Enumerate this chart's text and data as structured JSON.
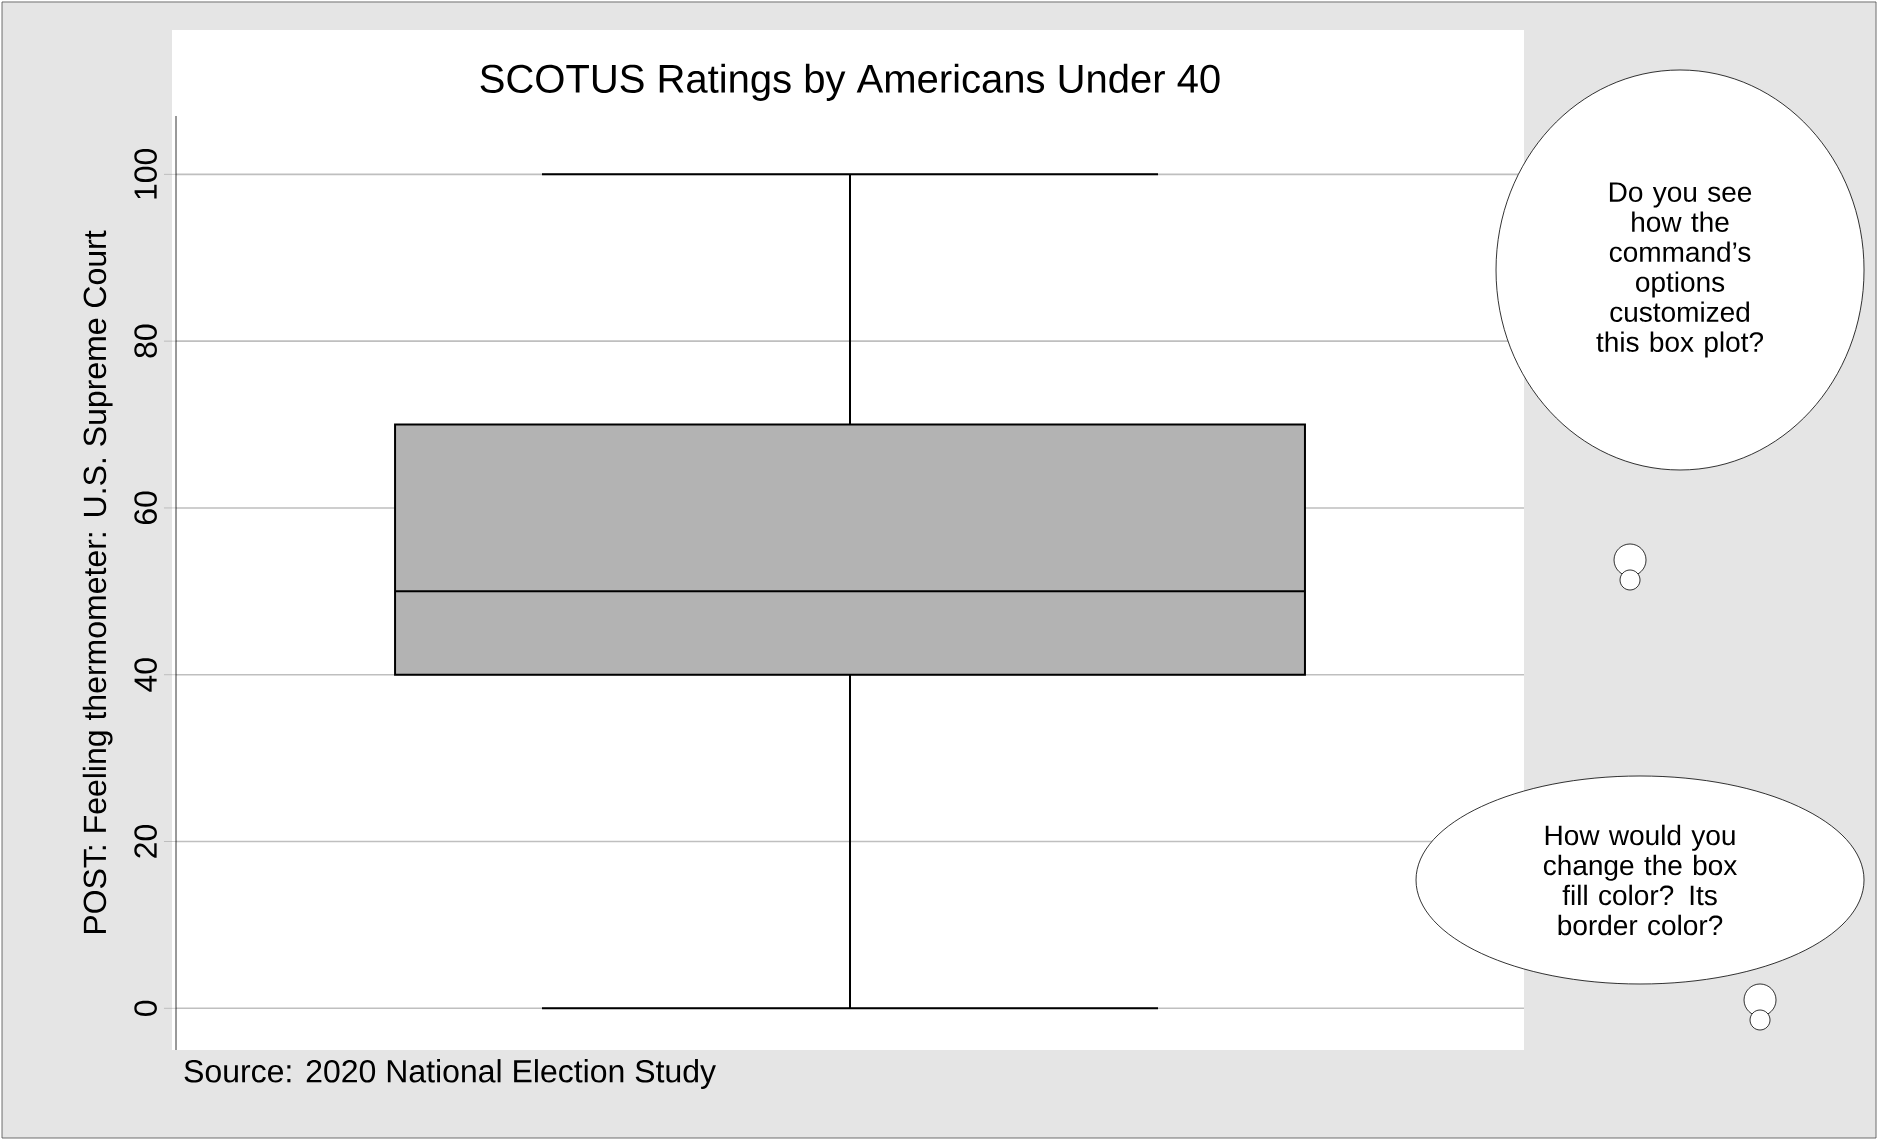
{
  "chart_data": {
    "type": "box",
    "title": "SCOTUS Ratings by Americans Under 40",
    "ylabel": "POST: Feeling thermometer: U.S. Supreme Court",
    "categories": [
      null
    ],
    "boxes": [
      {
        "low": 0,
        "q1": 40,
        "median": 50,
        "q3": 70,
        "high": 100
      }
    ],
    "color": "#b3b3b3",
    "ylim": [
      -5,
      107
    ],
    "yticks": [
      0,
      20,
      40,
      60,
      80,
      100
    ],
    "grid": "y",
    "tick_labels": "y",
    "annotations": [
      "Source: 2020 National Election Study",
      "Do you see how the command’s options customized this box plot?",
      "How would you change the box fill color? Its border color?"
    ]
  }
}
